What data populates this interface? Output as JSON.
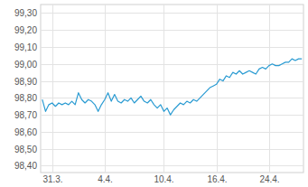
{
  "chart_data": {
    "type": "line",
    "categories": [
      null,
      null,
      null,
      "31.3.",
      null,
      null,
      null,
      null,
      null,
      null,
      null,
      null,
      null,
      null,
      null,
      null,
      null,
      null,
      null,
      "4.4.",
      null,
      null,
      null,
      null,
      null,
      null,
      null,
      null,
      null,
      null,
      null,
      null,
      null,
      null,
      null,
      null,
      null,
      "10.4.",
      null,
      null,
      null,
      null,
      null,
      null,
      null,
      null,
      null,
      null,
      null,
      null,
      null,
      null,
      null,
      "16.4.",
      null,
      null,
      null,
      null,
      null,
      null,
      null,
      null,
      null,
      null,
      null,
      null,
      null,
      null,
      null,
      "24.4.",
      null,
      null,
      null,
      null,
      null,
      null,
      null,
      null,
      null,
      null
    ],
    "series": [
      {
        "color": "#2a9bd2",
        "values": [
          98.79,
          98.72,
          98.76,
          98.77,
          98.75,
          98.77,
          98.76,
          98.77,
          98.76,
          98.78,
          98.76,
          98.83,
          98.79,
          98.77,
          98.79,
          98.78,
          98.76,
          98.72,
          98.76,
          98.79,
          98.83,
          98.78,
          98.82,
          98.78,
          98.77,
          98.79,
          98.78,
          98.8,
          98.77,
          98.79,
          98.81,
          98.78,
          98.77,
          98.79,
          98.76,
          98.74,
          98.76,
          98.72,
          98.74,
          98.7,
          98.73,
          98.75,
          98.77,
          98.76,
          98.78,
          98.77,
          98.79,
          98.78,
          98.8,
          98.82,
          98.84,
          98.86,
          98.87,
          98.88,
          98.91,
          98.9,
          98.93,
          98.92,
          98.95,
          98.94,
          98.96,
          98.94,
          98.95,
          98.96,
          98.95,
          98.94,
          98.97,
          98.98,
          98.97,
          98.99,
          99.0,
          98.99,
          98.99,
          99.0,
          99.01,
          99.01,
          99.03,
          99.02,
          99.03,
          99.03
        ]
      }
    ],
    "ylim": [
      98.36,
      99.35
    ],
    "yticks": [
      {
        "value": 98.4,
        "label": "98,40"
      },
      {
        "value": 98.5,
        "label": "98,50"
      },
      {
        "value": 98.6,
        "label": "98,60"
      },
      {
        "value": 98.7,
        "label": "98,70"
      },
      {
        "value": 98.8,
        "label": "98,80"
      },
      {
        "value": 98.9,
        "label": "98,90"
      },
      {
        "value": 99.0,
        "label": "99,00"
      },
      {
        "value": 99.1,
        "label": "99,10"
      },
      {
        "value": 99.2,
        "label": "99,20"
      },
      {
        "value": 99.3,
        "label": "99,30"
      }
    ],
    "grid": true
  }
}
